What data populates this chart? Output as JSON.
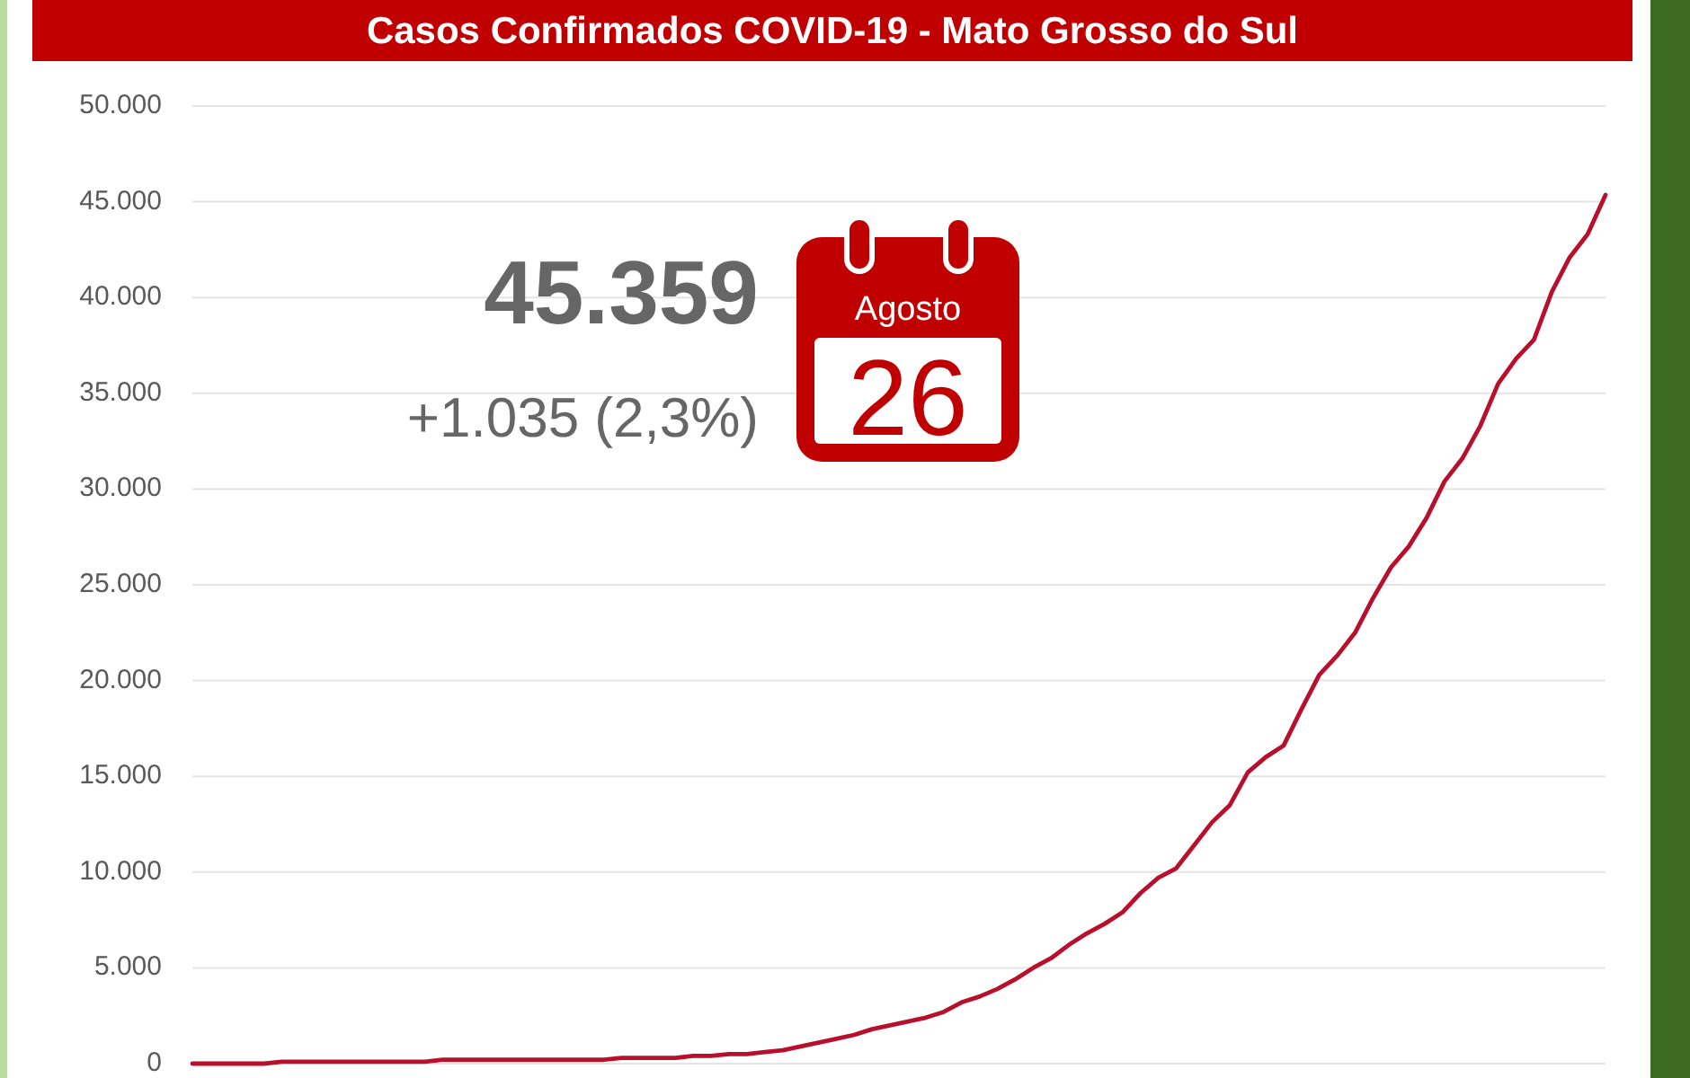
{
  "chart_data": {
    "type": "line",
    "title": "Casos Confirmados COVID-19 - Mato Grosso do Sul",
    "annotations": [
      "45.359",
      "+1.035 (2,3%)",
      "Agosto",
      "26"
    ],
    "categories": [
      null,
      null,
      null,
      null,
      null,
      null,
      null,
      null,
      null,
      null,
      null,
      null,
      null,
      null,
      null,
      null,
      null,
      null,
      null,
      null,
      null,
      null,
      null,
      null,
      null,
      null,
      null,
      null,
      null,
      null,
      null,
      null,
      null,
      null,
      null,
      null,
      null,
      null,
      null,
      null,
      null,
      null,
      null,
      null,
      null,
      null,
      null,
      null,
      null,
      null,
      null,
      null,
      null,
      null,
      null,
      null,
      null,
      null,
      null,
      null,
      null,
      null,
      null,
      null,
      null,
      null,
      null,
      null,
      null,
      null,
      null,
      null,
      null,
      null,
      null,
      null,
      null,
      null,
      null,
      null
    ],
    "series": [
      {
        "color": "#b8102c",
        "values": [
          0,
          0,
          0,
          0,
          0,
          100,
          100,
          100,
          100,
          100,
          100,
          100,
          100,
          100,
          200,
          200,
          200,
          200,
          200,
          200,
          200,
          200,
          200,
          200,
          300,
          300,
          300,
          300,
          400,
          400,
          500,
          500,
          600,
          700,
          900,
          1100,
          1300,
          1500,
          1800,
          2000,
          2200,
          2400,
          2700,
          3200,
          3500,
          3900,
          4400,
          5000,
          5500,
          6200,
          6800,
          7300,
          7900,
          8900,
          9700,
          10200,
          11400,
          12600,
          13500,
          15200,
          16000,
          16600,
          18500,
          20300,
          21300,
          22500,
          24300,
          25900,
          27000,
          28500,
          30400,
          31600,
          33300,
          35500,
          36800,
          37800,
          40300,
          42100,
          43300,
          45359
        ]
      }
    ],
    "ylim": [
      0,
      50000
    ],
    "yticks": [
      0,
      {
        "value": 5000,
        "label": "5.000"
      },
      {
        "value": 10000,
        "label": "10.000"
      },
      {
        "value": 15000,
        "label": "15.000"
      },
      {
        "value": 20000,
        "label": "20.000"
      },
      {
        "value": 25000,
        "label": "25.000"
      },
      {
        "value": 30000,
        "label": "30.000"
      },
      {
        "value": 35000,
        "label": "35.000"
      },
      {
        "value": 40000,
        "label": "40.000"
      },
      {
        "value": 45000,
        "label": "45.000"
      },
      {
        "value": 50000,
        "label": "50.000"
      }
    ],
    "grid": "y"
  }
}
